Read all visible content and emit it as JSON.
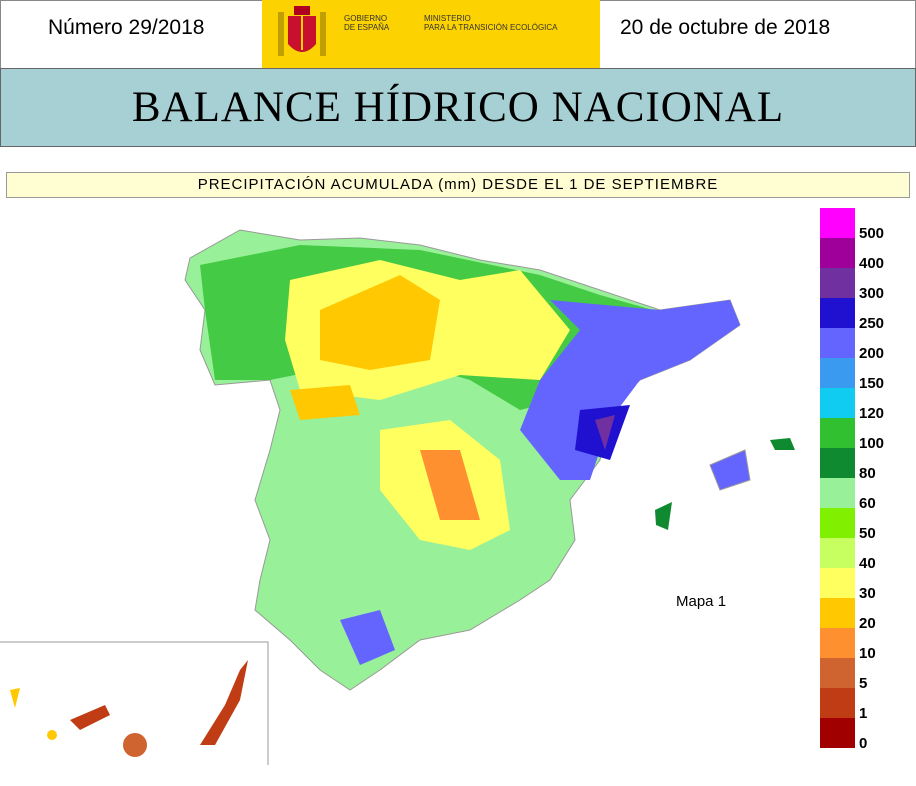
{
  "header": {
    "issue": "Número 29/2018",
    "date": "20 de octubre de 2018",
    "logo_left": [
      "GOBIERNO",
      "DE ESPAÑA"
    ],
    "logo_right": [
      "MINISTERIO",
      "PARA LA TRANSICIÓN ECOLÓGICA"
    ]
  },
  "title": "BALANCE HÍDRICO NACIONAL",
  "map": {
    "subtitle": "PRECIPITACIÓN ACUMULADA (mm) DESDE EL 1 DE SEPTIEMBRE",
    "label": "Mapa 1"
  },
  "legend": {
    "items": [
      {
        "label": "500",
        "color": "#ff00ff"
      },
      {
        "label": "400",
        "color": "#a0009a"
      },
      {
        "label": "300",
        "color": "#7030a0"
      },
      {
        "label": "250",
        "color": "#2010d0"
      },
      {
        "label": "200",
        "color": "#6464ff"
      },
      {
        "label": "150",
        "color": "#3a9af0"
      },
      {
        "label": "120",
        "color": "#10ccf0"
      },
      {
        "label": "100",
        "color": "#30c030"
      },
      {
        "label": "80",
        "color": "#108a30"
      },
      {
        "label": "60",
        "color": "#98f098"
      },
      {
        "label": "50",
        "color": "#80f000"
      },
      {
        "label": "40",
        "color": "#c8ff60"
      },
      {
        "label": "30",
        "color": "#ffff60"
      },
      {
        "label": "20",
        "color": "#ffc800"
      },
      {
        "label": "10",
        "color": "#ff9030"
      },
      {
        "label": "5",
        "color": "#d06430"
      },
      {
        "label": "1",
        "color": "#c03c14"
      },
      {
        "label": "0",
        "color": "#a00000"
      }
    ]
  }
}
